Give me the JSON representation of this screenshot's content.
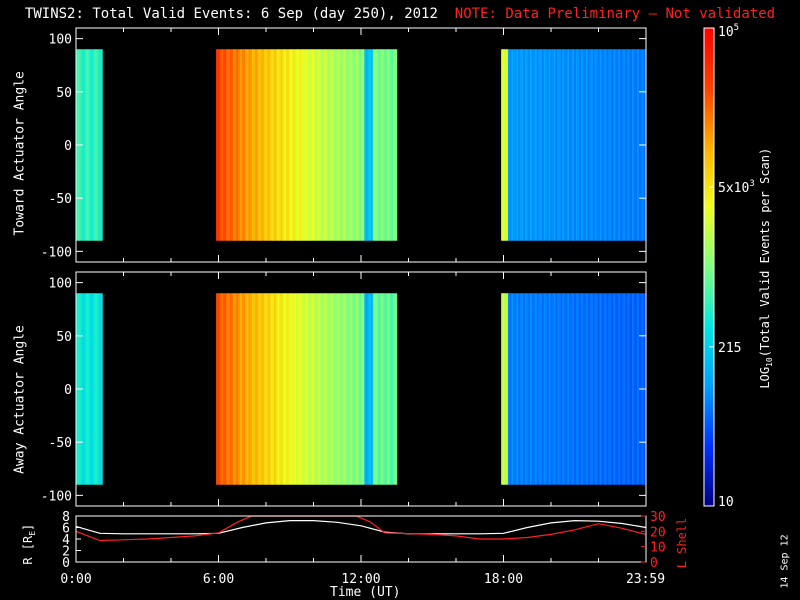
{
  "header": {
    "title": "TWINS2: Total Valid Events:  6 Sep (day 250), 2012",
    "note": "NOTE: Data Preliminary – Not validated"
  },
  "colors": {
    "note": "#ff2020",
    "r_line": "#ffffff",
    "lshell_line": "#ff2020",
    "colormap": [
      "#000080",
      "#0030ff",
      "#00a0ff",
      "#00e8e0",
      "#80ff80",
      "#f0ff20",
      "#ffb000",
      "#ff4000",
      "#ff0000"
    ]
  },
  "chart_data": [
    {
      "type": "heatmap",
      "name": "toward",
      "ylabel": "Toward Actuator Angle",
      "ylim": [
        -110,
        110
      ],
      "yticks": [
        100,
        50,
        0,
        -50,
        -100
      ],
      "ytick_labels": [
        "100",
        "50",
        "0",
        "-50",
        "-100"
      ],
      "xlim": [
        0,
        24
      ],
      "angle_range": [
        -90,
        90
      ],
      "data_blocks": [
        {
          "start_hr": 0.0,
          "end_hr": 1.1,
          "level": 0.42
        },
        {
          "start_hr": 5.9,
          "end_hr": 13.5,
          "level": 0.6
        },
        {
          "start_hr": 17.9,
          "end_hr": 23.98,
          "level": 0.25
        }
      ]
    },
    {
      "type": "heatmap",
      "name": "away",
      "ylabel": "Away Actuator Angle",
      "ylim": [
        -110,
        110
      ],
      "yticks": [
        100,
        50,
        0,
        -50,
        -100
      ],
      "ytick_labels": [
        "100",
        "50",
        "0",
        "-50",
        "-100"
      ],
      "xlim": [
        0,
        24
      ],
      "angle_range": [
        -90,
        90
      ],
      "data_blocks": [
        {
          "start_hr": 0.0,
          "end_hr": 1.1,
          "level": 0.38
        },
        {
          "start_hr": 5.9,
          "end_hr": 13.5,
          "level": 0.58
        },
        {
          "start_hr": 17.9,
          "end_hr": 23.98,
          "level": 0.22
        }
      ]
    },
    {
      "type": "line",
      "name": "orbit",
      "ylabel_left": "R [R",
      "ylabel_left_sub": "E",
      "ylabel_left_end": "]",
      "ylabel_right": "L Shell",
      "left_ylim": [
        0,
        8
      ],
      "left_ticks": [
        "8",
        "6",
        "4",
        "2",
        "0"
      ],
      "right_ylim": [
        0,
        30
      ],
      "right_ticks": [
        "30",
        "20",
        "10",
        "0"
      ],
      "xlim": [
        0,
        24
      ],
      "xticks": [
        0,
        6,
        12,
        18,
        23.98
      ],
      "xtick_labels": [
        "0:00",
        "6:00",
        "12:00",
        "18:00",
        "23:59"
      ],
      "xlabel": "Time (UT)",
      "series": [
        {
          "name": "R",
          "axis": "left",
          "x": [
            0,
            1,
            2,
            3,
            4,
            5,
            6,
            7,
            8,
            9,
            10,
            11,
            12,
            13,
            14,
            15,
            16,
            17,
            18,
            19,
            20,
            21,
            22,
            23,
            24
          ],
          "values": [
            6.2,
            5.0,
            4.9,
            4.9,
            4.9,
            4.9,
            5.0,
            6.0,
            6.8,
            7.2,
            7.2,
            6.9,
            6.3,
            5.2,
            4.9,
            4.9,
            4.9,
            4.9,
            5.0,
            6.0,
            6.8,
            7.2,
            7.1,
            6.7,
            6.0
          ]
        },
        {
          "name": "L Shell",
          "axis": "right",
          "x": [
            0,
            1,
            2,
            3,
            4,
            5,
            6,
            6.8,
            7.4,
            11.8,
            12.4,
            13,
            14,
            15,
            16,
            17,
            18,
            19,
            20,
            21,
            22,
            23,
            24
          ],
          "values": [
            20,
            14,
            14.5,
            15,
            16,
            17,
            19,
            26,
            31,
            31,
            26,
            19,
            18.5,
            18,
            17,
            15,
            15,
            16,
            18,
            21,
            25,
            22,
            18
          ]
        }
      ]
    }
  ],
  "colorbar": {
    "label_pre": "LOG",
    "label_sub": "10",
    "label_post": "(Total Valid Events per Scan)",
    "ticks": [
      {
        "label": "10",
        "frac": 0.0
      },
      {
        "label": "215",
        "frac": 0.333
      },
      {
        "label": "5x10",
        "sup": "3",
        "frac": 0.667
      },
      {
        "label": "10",
        "sup": "5",
        "frac": 1.0
      }
    ]
  },
  "footer": {
    "date_stamp": "14 Sep 12"
  }
}
